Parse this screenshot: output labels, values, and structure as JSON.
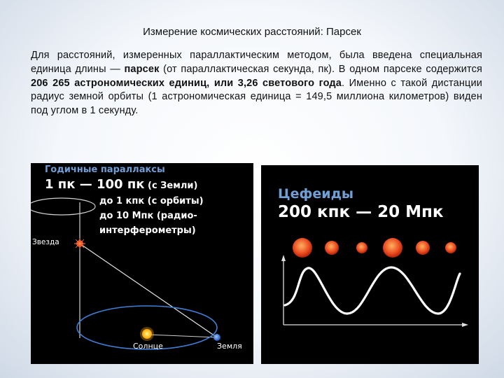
{
  "title": "Измерение космических расстояний: Парсек",
  "paragraph": {
    "p1": "Для расстояний, измеренных параллактическим методом, была введена специальная единица длины — ",
    "p2_bold": "парсек",
    "p3": " (от параллактическая секунда, пк). В одном парсеке содержится ",
    "p4_bold": "206 265 астрономических единиц, или 3,26 светового года",
    "p5": ". Именно с такой дистанции радиус земной орбиты (1 астрономическая единица = 149,5 миллиона километров) виден под углом в 1 секунду."
  },
  "left_panel": {
    "heading": "Годичные параллаксы",
    "main_line": "1 пк — 100 пк",
    "main_note": " (с Земли)",
    "line2": "до 1 кпк (с орбиты)",
    "line3": "до 10 Мпк (радио-",
    "line4": "интерферометры)",
    "star_label": "Звезда",
    "sun_label": "Солнце",
    "earth_label": "Земля"
  },
  "right_panel": {
    "heading": "Цефеиды",
    "range": "200 кпк — 20 Мпк"
  },
  "colors": {
    "heading_blue": "#6f9fd6",
    "orbit_blue": "#3f7fd8",
    "star_red": "#e8451c",
    "sun_yellow": "#ffcc33",
    "earth_blue": "#3b78d8"
  }
}
